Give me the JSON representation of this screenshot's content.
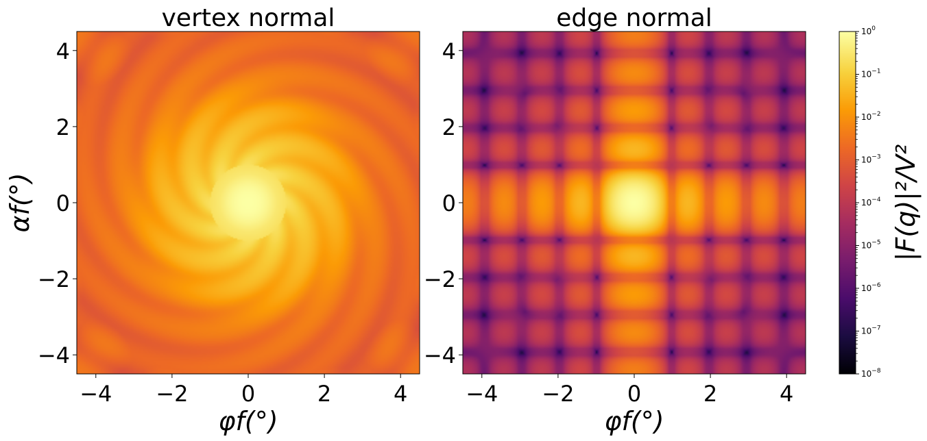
{
  "chart_data": [
    {
      "type": "heatmap",
      "title": "vertex normal",
      "xlabel": "φf(°)",
      "ylabel": "αf(°)",
      "xlim": [
        -4.5,
        4.5
      ],
      "ylim": [
        -4.5,
        4.5
      ],
      "xticks": [
        -4,
        -2,
        0,
        2,
        4
      ],
      "yticks": [
        -4,
        -2,
        0,
        2,
        4
      ],
      "tick_labels": [
        "−4",
        "−2",
        "0",
        "2",
        "4"
      ],
      "pattern": "star with diagonal streaks, bright peak at (0,0)"
    },
    {
      "type": "heatmap",
      "title": "edge normal",
      "xlabel": "φf(°)",
      "ylabel": "",
      "xlim": [
        -4.5,
        4.5
      ],
      "ylim": [
        -4.5,
        4.5
      ],
      "xticks": [
        -4,
        -2,
        0,
        2,
        4
      ],
      "yticks": [
        -4,
        -2,
        0,
        2,
        4
      ],
      "tick_labels": [
        "−4",
        "−2",
        "0",
        "2",
        "4"
      ],
      "pattern": "cross along axes with fringe lattice, bright peak at (0,0)"
    }
  ],
  "colorbar": {
    "label": "|F(q)|²/V²",
    "scale": "log",
    "colormap": "inferno",
    "range": [
      1e-08,
      1
    ],
    "ticks": [
      {
        "base": "10",
        "exp": "0",
        "value": 1
      },
      {
        "base": "10",
        "exp": "−1",
        "value": 0.1
      },
      {
        "base": "10",
        "exp": "−2",
        "value": 0.01
      },
      {
        "base": "10",
        "exp": "−3",
        "value": 0.001
      },
      {
        "base": "10",
        "exp": "−4",
        "value": 0.0001
      },
      {
        "base": "10",
        "exp": "−5",
        "value": 1e-05
      },
      {
        "base": "10",
        "exp": "−6",
        "value": 1e-06
      },
      {
        "base": "10",
        "exp": "−7",
        "value": 1e-07
      },
      {
        "base": "10",
        "exp": "−8",
        "value": 1e-08
      }
    ]
  },
  "colors": {
    "inferno": [
      "#000004",
      "#1b0c41",
      "#4a0c6b",
      "#781c6d",
      "#a52c60",
      "#cf4446",
      "#ed6925",
      "#fb9b06",
      "#f7d13d",
      "#fcffa4"
    ]
  }
}
